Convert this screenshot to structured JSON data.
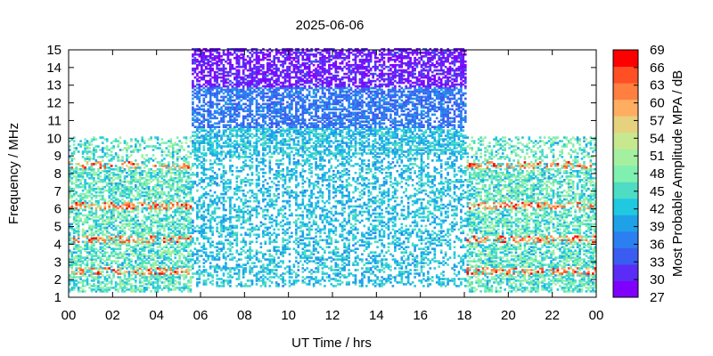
{
  "chart_data": {
    "type": "heatmap",
    "title": "2025-06-06",
    "xlabel": "UT Time / hrs",
    "ylabel": "Frequency / MHz",
    "xlim": [
      0,
      24
    ],
    "ylim": [
      1,
      15
    ],
    "x_ticks": [
      "00",
      "02",
      "04",
      "06",
      "08",
      "10",
      "12",
      "14",
      "16",
      "18",
      "20",
      "22",
      "00"
    ],
    "y_ticks": [
      "1",
      "2",
      "3",
      "4",
      "5",
      "6",
      "7",
      "8",
      "9",
      "10",
      "11",
      "12",
      "13",
      "14",
      "15"
    ],
    "colorbar": {
      "label": "Most Probable Amplitude MPA / dB",
      "min": 27,
      "max": 69,
      "ticks": [
        "27",
        "30",
        "33",
        "36",
        "39",
        "42",
        "45",
        "48",
        "51",
        "54",
        "57",
        "60",
        "63",
        "66",
        "69"
      ],
      "colors": [
        "#8000ff",
        "#5a2cf5",
        "#3b5cf0",
        "#2c7ff0",
        "#1fa1e8",
        "#20c8e0",
        "#4fdcc4",
        "#80f0b0",
        "#a4f0a0",
        "#c8e890",
        "#e6d17e",
        "#ffad60",
        "#ff7f40",
        "#ff4f25",
        "#ff0000"
      ]
    },
    "coverage": [
      {
        "x_range": [
          0,
          5.5
        ],
        "freq_range": [
          1,
          10
        ]
      },
      {
        "x_range": [
          5.5,
          18
        ],
        "freq_range": [
          1,
          15
        ]
      },
      {
        "x_range": [
          18,
          24
        ],
        "freq_range": [
          1,
          10
        ]
      }
    ],
    "notes_visible": "scattered dense heatmap of most probable amplitude per time/frequency cell"
  }
}
